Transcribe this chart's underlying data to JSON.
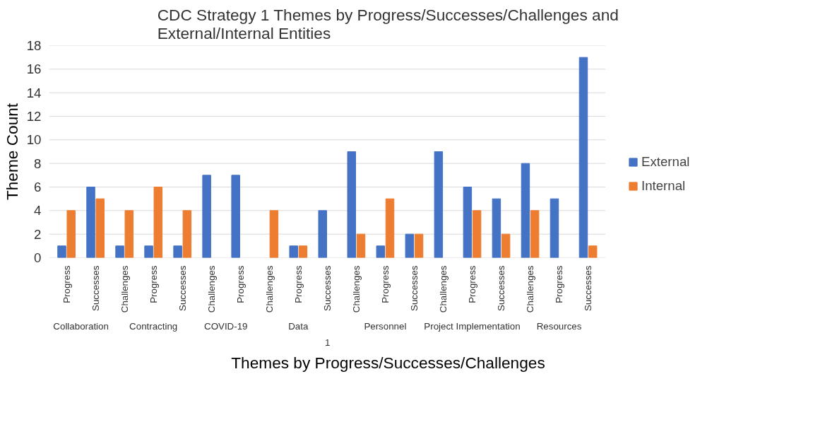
{
  "chart_data": {
    "type": "bar",
    "title": "CDC Strategy 1 Themes by Progress/Successes/Challenges and External/Internal Entities",
    "xlabel": "Themes by Progress/Successes/Challenges",
    "ylabel": "Theme Count",
    "categories": [
      "Progress",
      "Successes",
      "Challenges",
      "Progress",
      "Successes",
      "Challenges",
      "Progress",
      "Challenges",
      "Progress",
      "Successes",
      "Challenges",
      "Progress",
      "Successes",
      "Challenges",
      "Progress",
      "Successes",
      "Challenges",
      "Progress",
      "Successes"
    ],
    "annotations": [
      "Collaboration",
      "Contracting",
      "COVID-19",
      "Data",
      "Personnel",
      "Project Implementation",
      "Resources",
      "1"
    ],
    "series": [
      {
        "name": "External",
        "color": "#4472c4",
        "values": [
          1,
          6,
          1,
          1,
          1,
          7,
          7,
          null,
          1,
          4,
          9,
          1,
          2,
          9,
          6,
          5,
          8,
          5,
          17
        ]
      },
      {
        "name": "Internal",
        "color": "#ed7d31",
        "values": [
          4,
          5,
          4,
          6,
          4,
          null,
          null,
          4,
          1,
          null,
          2,
          5,
          2,
          null,
          4,
          2,
          4,
          null,
          1
        ]
      }
    ],
    "ylim": [
      0,
      18
    ],
    "yticks": [
      0,
      2,
      4,
      6,
      8,
      10,
      12,
      14,
      16,
      18
    ],
    "grid": "y",
    "legend": "right"
  }
}
